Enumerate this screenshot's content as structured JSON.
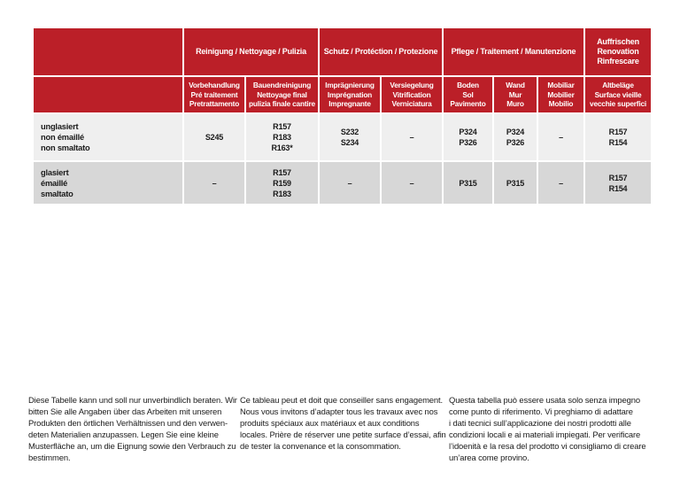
{
  "table": {
    "group_headers": {
      "reinigung": "Reinigung / Nettoyage / Pulizia",
      "schutz": "Schutz / Protéction / Protezione",
      "pflege": "Pflege / Traitement / Manutenzione",
      "auffrischen": "Auffrischen\nRenovation\nRinfrescare"
    },
    "col_headers": [
      "Vorbehandlung\nPré traitement\nPretrattamento",
      "Bauendreinigung\nNettoyage final\npulizia finale cantire",
      "Imprägnierung\nImprégnation\nImpregnante",
      "Versiegelung\nVitrification\nVerniciatura",
      "Boden\nSol\nPavimento",
      "Wand\nMur\nMuro",
      "Mobiliar\nMobilier\nMobilio",
      "Altbeläge\nSurface vieille\nvecchie superfici"
    ],
    "rows": [
      {
        "label": "unglasiert\nnon émaillé\nnon smaltato",
        "cells": [
          "S245",
          "R157\nR183\nR163*",
          "S232\nS234",
          "–",
          "P324\nP326",
          "P324\nP326",
          "–",
          "R157\nR154"
        ]
      },
      {
        "label": "glasiert\némaillé\nsmaltato",
        "cells": [
          "–",
          "R157\nR159\nR183",
          "–",
          "–",
          "P315",
          "P315",
          "–",
          "R157\nR154"
        ]
      }
    ]
  },
  "notes": {
    "german": "Diese Tabelle kann und soll nur unverbindlich beraten. Wir\nbitten Sie alle Angaben über das Arbeiten mit unseren\nProdukten den örtlichen Verhältnissen und den verwen-\ndeten Materialien anzupassen. Legen Sie eine kleine\nMusterfläche an, um die Eignung sowie den Verbrauch zu\nbestimmen.",
    "french": "Ce tableau peut et doit que conseiller sans engagement.\nNous vous invitons d’adapter tous les travaux avec nos\nproduits spéciaux aux matériaux et aux conditions\nlocales. Prière de réserver une petite surface d’essai, afin\nde tester la convenance et la consommation.",
    "italian": "Questa tabella può essere usata solo senza impegno\ncome punto di riferimento. Vi preghiamo di adattare\ni dati tecnici sull’applicazione dei nostri prodotti alle\ncondizioni locali e ai materiali impiegati. Per verificare\nl’idoenità e la resa del prodotto vi consigliamo di creare\nun’area come provino.",
    "colors": {
      "header_red": "#BB1F28",
      "row_light": "#EFEFEF",
      "row_dark": "#D7D7D7"
    }
  }
}
